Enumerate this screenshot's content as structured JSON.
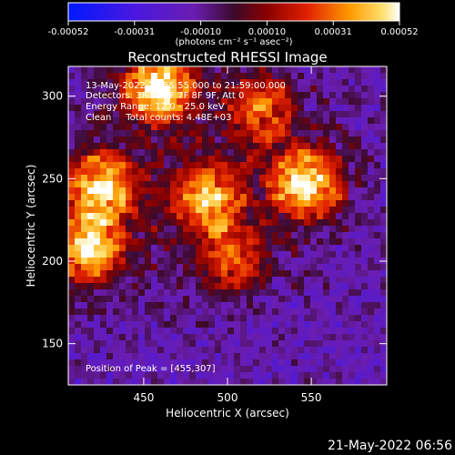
{
  "chart_data": {
    "type": "heatmap",
    "title": "Reconstructed RHESSI Image",
    "xlabel": "Heliocentric X (arcsec)",
    "ylabel": "Heliocentric Y (arcsec)",
    "xlim": [
      405,
      595
    ],
    "ylim": [
      125,
      318
    ],
    "x_ticks": [
      450,
      500,
      550
    ],
    "y_ticks": [
      150,
      200,
      250,
      300
    ],
    "colorbar": {
      "ticks": [
        "-0.00052",
        "-0.00031",
        "-0.00010",
        "0.00010",
        "0.00031",
        "0.00052"
      ],
      "range": [
        -0.00052,
        0.00052
      ],
      "units": "(photons cm⁻² s⁻¹ asec⁻²)"
    },
    "annotations": {
      "time": "13-May-2022 21:55:55.000 to 21:59:00.000",
      "detectors": "Detectors: 3F 5F 6F 7F 8F 9F, Att 0",
      "energy": "Energy Range: 12.0 - 25.0 keV",
      "clean": "Clean     Total counts: 4.48E+03",
      "peak": "Position of Peak = [455,307]"
    },
    "sources": [
      {
        "x": 459,
        "y": 305,
        "intensity": 1.0
      },
      {
        "x": 547,
        "y": 247,
        "intensity": 0.95
      },
      {
        "x": 425,
        "y": 245,
        "intensity": 0.85
      },
      {
        "x": 417,
        "y": 207,
        "intensity": 0.9
      },
      {
        "x": 488,
        "y": 238,
        "intensity": 0.75
      },
      {
        "x": 520,
        "y": 293,
        "intensity": 0.6
      },
      {
        "x": 502,
        "y": 201,
        "intensity": 0.55
      }
    ],
    "footer": "21-May-2022 06:56"
  }
}
